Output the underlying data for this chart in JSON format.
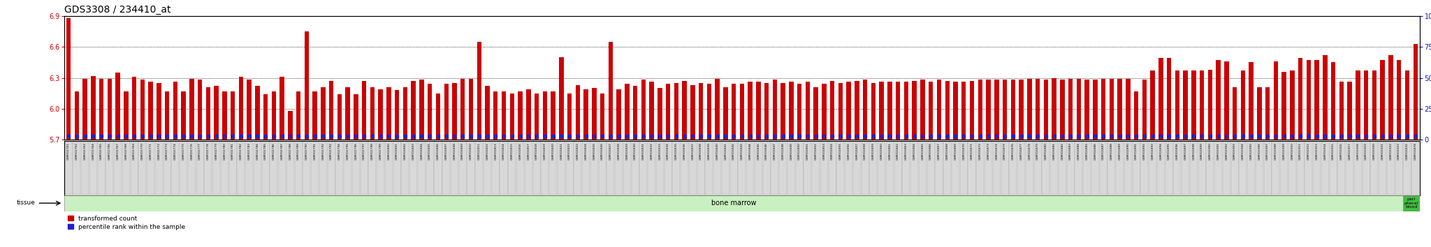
{
  "title": "GDS3308 / 234410_at",
  "ylim_left": [
    5.7,
    6.9
  ],
  "ylim_right": [
    0,
    100
  ],
  "yticks_left": [
    5.7,
    6.0,
    6.3,
    6.6,
    6.9
  ],
  "yticks_right": [
    0,
    25,
    50,
    75,
    100
  ],
  "bar_color": "#cc0000",
  "dot_color": "#2222cc",
  "bg_color": "#ffffff",
  "title_color": "#000000",
  "left_axis_color": "#cc0000",
  "right_axis_color": "#1111bb",
  "grid_color": "#000000",
  "label_box_facecolor": "#d8d8d8",
  "label_box_edgecolor": "#999999",
  "tissue_green_light": "#c8f0c0",
  "tissue_green_dark": "#44bb44",
  "samples": [
    "GSM311761",
    "GSM311762",
    "GSM311763",
    "GSM311764",
    "GSM311765",
    "GSM311766",
    "GSM311767",
    "GSM311768",
    "GSM311769",
    "GSM311770",
    "GSM311771",
    "GSM311772",
    "GSM311773",
    "GSM311774",
    "GSM311775",
    "GSM311776",
    "GSM311777",
    "GSM311778",
    "GSM311779",
    "GSM311780",
    "GSM311781",
    "GSM311782",
    "GSM311783",
    "GSM311784",
    "GSM311785",
    "GSM311786",
    "GSM311787",
    "GSM311788",
    "GSM311789",
    "GSM311790",
    "GSM311791",
    "GSM311792",
    "GSM311793",
    "GSM311794",
    "GSM311795",
    "GSM311796",
    "GSM311797",
    "GSM311798",
    "GSM311799",
    "GSM311800",
    "GSM311801",
    "GSM311802",
    "GSM311803",
    "GSM311804",
    "GSM311805",
    "GSM311806",
    "GSM311807",
    "GSM311808",
    "GSM311809",
    "GSM311810",
    "GSM311811",
    "GSM311812",
    "GSM311813",
    "GSM311814",
    "GSM311815",
    "GSM311816",
    "GSM311817",
    "GSM311818",
    "GSM311819",
    "GSM311820",
    "GSM311821",
    "GSM311822",
    "GSM311823",
    "GSM311824",
    "GSM311825",
    "GSM311826",
    "GSM311827",
    "GSM311828",
    "GSM311829",
    "GSM311830",
    "GSM311831",
    "GSM311832",
    "GSM311833",
    "GSM311834",
    "GSM311835",
    "GSM311836",
    "GSM311837",
    "GSM311838",
    "GSM311839",
    "GSM311840",
    "GSM311841",
    "GSM311842",
    "GSM311843",
    "GSM311844",
    "GSM311845",
    "GSM311846",
    "GSM311847",
    "GSM311848",
    "GSM311849",
    "GSM311850",
    "GSM311851",
    "GSM311852",
    "GSM311853",
    "GSM311854",
    "GSM311855",
    "GSM311856",
    "GSM311857",
    "GSM311858",
    "GSM311859",
    "GSM311860",
    "GSM311861",
    "GSM311862",
    "GSM311863",
    "GSM311864",
    "GSM311865",
    "GSM311866",
    "GSM311867",
    "GSM311868",
    "GSM311869",
    "GSM311870",
    "GSM311871",
    "GSM311872",
    "GSM311873",
    "GSM311874",
    "GSM311875",
    "GSM311876",
    "GSM311877",
    "GSM311878",
    "GSM311879",
    "GSM311880",
    "GSM311881",
    "GSM311882",
    "GSM311883",
    "GSM311884",
    "GSM311885",
    "GSM311886",
    "GSM311887",
    "GSM311888",
    "GSM311889",
    "GSM311890",
    "GSM311891",
    "GSM311892",
    "GSM311893",
    "GSM311894",
    "GSM311895",
    "GSM311896",
    "GSM311897",
    "GSM311898",
    "GSM311899",
    "GSM311900",
    "GSM311901",
    "GSM311902",
    "GSM311903",
    "GSM311904",
    "GSM311905",
    "GSM311906",
    "GSM311907",
    "GSM311908",
    "GSM311909",
    "GSM311910",
    "GSM311911",
    "GSM311912",
    "GSM311913",
    "GSM311914",
    "GSM311915",
    "GSM311916",
    "GSM311917",
    "GSM311918",
    "GSM311919",
    "GSM311920",
    "GSM311921",
    "GSM311922",
    "GSM311923",
    "GSM311831",
    "GSM311878"
  ],
  "values": [
    6.88,
    6.17,
    6.29,
    6.32,
    6.29,
    6.29,
    6.35,
    6.17,
    6.31,
    6.28,
    6.26,
    6.25,
    6.17,
    6.26,
    6.17,
    6.29,
    6.28,
    6.21,
    6.22,
    6.17,
    6.17,
    6.31,
    6.28,
    6.22,
    6.14,
    6.17,
    6.31,
    5.98,
    6.17,
    6.75,
    6.17,
    6.21,
    6.27,
    6.14,
    6.21,
    6.14,
    6.27,
    6.21,
    6.19,
    6.21,
    6.18,
    6.21,
    6.27,
    6.28,
    6.24,
    6.15,
    6.24,
    6.25,
    6.29,
    6.29,
    6.65,
    6.22,
    6.17,
    6.17,
    6.15,
    6.17,
    6.19,
    6.15,
    6.17,
    6.17,
    6.5,
    6.15,
    6.23,
    6.19,
    6.2,
    6.15,
    6.65,
    6.19,
    6.24,
    6.22,
    6.28,
    6.26,
    6.2,
    6.24,
    6.25,
    6.27,
    6.23,
    6.25,
    6.24,
    6.29,
    6.21,
    6.24,
    6.24,
    6.26,
    6.26,
    6.25,
    6.28,
    6.25,
    6.26,
    6.24,
    6.26,
    6.21,
    6.24,
    6.27,
    6.25,
    6.26,
    6.27,
    6.28,
    6.25,
    6.26,
    6.26,
    6.26,
    6.26,
    6.27,
    6.28,
    6.26,
    6.28,
    6.27,
    6.26,
    6.26,
    6.27,
    6.28,
    6.28,
    6.28,
    6.28,
    6.28,
    6.28,
    6.29,
    6.29,
    6.28,
    6.3,
    6.28,
    6.29,
    6.29,
    6.28,
    6.28,
    6.29,
    6.29,
    6.29,
    6.29,
    6.17,
    6.28,
    6.37,
    6.49,
    6.49,
    6.37,
    6.37,
    6.37,
    6.37,
    6.38,
    6.47,
    6.46,
    6.21,
    6.37,
    6.45,
    6.21,
    6.21,
    6.46,
    6.36,
    6.37,
    6.49,
    6.47,
    6.47,
    6.52,
    6.45,
    6.26,
    6.26,
    6.37,
    6.37,
    6.37,
    6.47,
    6.52,
    6.47,
    6.37,
    6.63
  ],
  "percentile_values": [
    3,
    3,
    3,
    3,
    3,
    3,
    3,
    3,
    3,
    3,
    3,
    3,
    3,
    3,
    3,
    3,
    3,
    3,
    3,
    3,
    3,
    3,
    3,
    3,
    3,
    3,
    3,
    3,
    3,
    3,
    3,
    3,
    3,
    3,
    3,
    3,
    3,
    3,
    3,
    3,
    3,
    3,
    3,
    3,
    3,
    3,
    3,
    3,
    3,
    3,
    3,
    3,
    3,
    3,
    3,
    3,
    3,
    3,
    3,
    3,
    3,
    3,
    3,
    3,
    3,
    3,
    3,
    3,
    3,
    3,
    3,
    3,
    3,
    3,
    3,
    3,
    3,
    3,
    3,
    3,
    3,
    3,
    3,
    3,
    3,
    3,
    3,
    3,
    3,
    3,
    3,
    3,
    3,
    3,
    3,
    3,
    3,
    3,
    3,
    3,
    3,
    3,
    3,
    3,
    3,
    3,
    3,
    3,
    3,
    3,
    3,
    3,
    3,
    3,
    3,
    3,
    3,
    3,
    3,
    3,
    3,
    3,
    3,
    3,
    3,
    3,
    3,
    3,
    3,
    3,
    3,
    3,
    3,
    3,
    3,
    3,
    3,
    3,
    3,
    3,
    3,
    3,
    3,
    3,
    3,
    3,
    3,
    3,
    3,
    3,
    3,
    3,
    3,
    3,
    3,
    3,
    3,
    3,
    3,
    3,
    3,
    3,
    3,
    3,
    3
  ],
  "bone_marrow_count": 163,
  "peripheral_blood_count": 2,
  "legend_items": [
    {
      "color": "#cc0000",
      "label": "transformed count"
    },
    {
      "color": "#2222cc",
      "label": "percentile rank within the sample"
    }
  ]
}
